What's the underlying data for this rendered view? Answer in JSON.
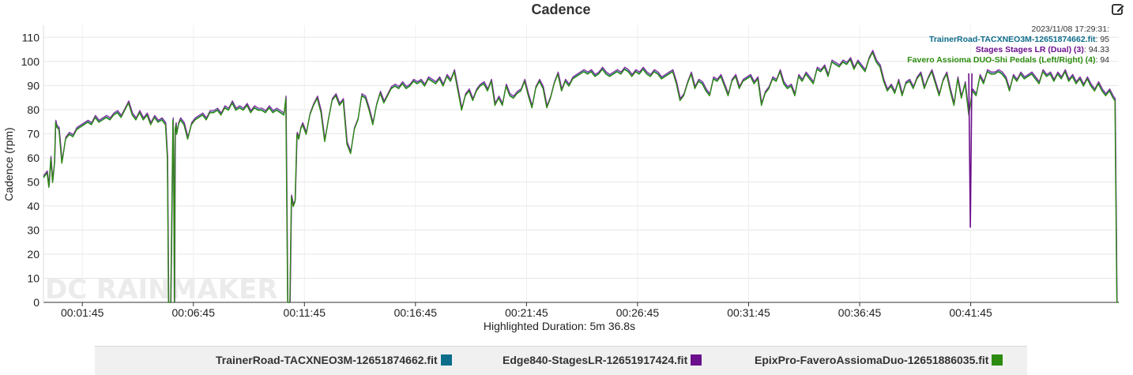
{
  "title": "Cadence",
  "watermark": "DC RAINMAKER",
  "readout": {
    "time": "2023/11/08 17:29:31:",
    "rows": [
      {
        "name": "TrainerRoad-TACXNEO3M-12651874662.fit",
        "value": ": 95",
        "color": "#0f6d8c"
      },
      {
        "name": "Stages Stages LR (Dual) (3)",
        "value": ": 94.33",
        "color": "#6c0f8c"
      },
      {
        "name": "Favero Assioma DUO-Shi Pedals (Left/Right) (4)",
        "value": ": 94",
        "color": "#2c8c0f"
      }
    ]
  },
  "legend": [
    {
      "label": "TrainerRoad-TACXNEO3M-12651874662.fit",
      "color": "#0f6d8c"
    },
    {
      "label": "Edge840-StagesLR-12651917424.fit",
      "color": "#6c0f8c"
    },
    {
      "label": "EpixPro-FaveroAssiomaDuo-12651886035.fit",
      "color": "#2c8c0f"
    }
  ],
  "highlighted_duration": "Highlighted Duration: 5m 36.8s",
  "chart_data": {
    "type": "line",
    "ylabel": "Cadence (rpm)",
    "xlabel": "",
    "ylim": [
      0,
      115
    ],
    "yticks": [
      0,
      10,
      20,
      30,
      40,
      50,
      60,
      70,
      80,
      90,
      100,
      110
    ],
    "xlim_seconds": [
      0,
      2905
    ],
    "xticks": [
      {
        "t": 105,
        "label": "00:01:45"
      },
      {
        "t": 405,
        "label": "00:06:45"
      },
      {
        "t": 705,
        "label": "00:11:45"
      },
      {
        "t": 1005,
        "label": "00:16:45"
      },
      {
        "t": 1305,
        "label": "00:21:45"
      },
      {
        "t": 1605,
        "label": "00:26:45"
      },
      {
        "t": 1905,
        "label": "00:31:45"
      },
      {
        "t": 2205,
        "label": "00:36:45"
      },
      {
        "t": 2505,
        "label": "00:41:45"
      }
    ],
    "grid": true,
    "colors": [
      "#0f6d8c",
      "#6c0f8c",
      "#2c8c0f"
    ],
    "series_trainerroad": {
      "t": [
        0,
        10,
        15,
        20,
        25,
        30,
        33,
        36,
        42,
        50,
        60,
        70,
        80,
        90,
        100,
        110,
        120,
        130,
        140,
        150,
        160,
        170,
        180,
        190,
        200,
        210,
        220,
        230,
        240,
        250,
        260,
        270,
        280,
        290,
        300,
        310,
        320,
        330,
        335,
        338,
        341,
        344,
        350,
        352,
        354,
        356,
        358,
        360,
        365,
        370,
        380,
        390,
        400,
        410,
        420,
        430,
        440,
        450,
        460,
        470,
        480,
        490,
        500,
        510,
        520,
        530,
        540,
        550,
        560,
        570,
        580,
        590,
        600,
        610,
        620,
        630,
        640,
        650,
        655,
        660,
        663,
        666,
        670,
        675,
        680,
        685,
        690,
        695,
        700,
        710,
        720,
        730,
        740,
        750,
        760,
        770,
        780,
        790,
        800,
        810,
        820,
        830,
        840,
        850,
        860,
        870,
        880,
        890,
        900,
        910,
        920,
        930,
        940,
        950,
        960,
        970,
        980,
        990,
        1000,
        1010,
        1020,
        1030,
        1040,
        1050,
        1060,
        1070,
        1080,
        1090,
        1100,
        1110,
        1120,
        1130,
        1140,
        1150,
        1160,
        1170,
        1180,
        1190,
        1200,
        1210,
        1220,
        1230,
        1240,
        1250,
        1260,
        1270,
        1280,
        1290,
        1300,
        1310,
        1320,
        1330,
        1340,
        1350,
        1360,
        1370,
        1380,
        1390,
        1400,
        1410,
        1420,
        1430,
        1440,
        1450,
        1460,
        1470,
        1480,
        1490,
        1500,
        1510,
        1520,
        1530,
        1540,
        1550,
        1560,
        1570,
        1580,
        1590,
        1600,
        1610,
        1620,
        1630,
        1640,
        1650,
        1660,
        1670,
        1680,
        1690,
        1700,
        1710,
        1720,
        1730,
        1740,
        1750,
        1760,
        1770,
        1780,
        1790,
        1800,
        1810,
        1820,
        1830,
        1840,
        1850,
        1860,
        1870,
        1880,
        1890,
        1900,
        1910,
        1920,
        1930,
        1940,
        1950,
        1960,
        1970,
        1980,
        1990,
        2000,
        2010,
        2020,
        2030,
        2040,
        2050,
        2060,
        2070,
        2080,
        2090,
        2100,
        2110,
        2120,
        2130,
        2140,
        2150,
        2160,
        2170,
        2180,
        2190,
        2200,
        2210,
        2220,
        2230,
        2240,
        2250,
        2260,
        2270,
        2280,
        2290,
        2300,
        2310,
        2320,
        2330,
        2340,
        2350,
        2360,
        2370,
        2380,
        2390,
        2400,
        2410,
        2420,
        2430,
        2440,
        2450,
        2460,
        2470,
        2480,
        2490,
        2500,
        2510,
        2520,
        2530,
        2540,
        2550,
        2560,
        2570,
        2580,
        2590,
        2600,
        2610,
        2620,
        2630,
        2640,
        2650,
        2660,
        2670,
        2680,
        2690,
        2700,
        2710,
        2720,
        2730,
        2740,
        2750,
        2760,
        2770,
        2780,
        2790,
        2800,
        2810,
        2820,
        2830,
        2840,
        2850,
        2860,
        2870,
        2880,
        2890,
        2895,
        2900,
        2905
      ],
      "v": [
        52,
        54,
        48,
        60,
        50,
        58,
        75,
        73,
        72,
        58,
        68,
        70,
        69,
        72,
        73,
        74,
        75,
        74,
        77,
        75,
        76,
        77,
        76,
        78,
        79,
        77,
        80,
        83,
        78,
        76,
        79,
        76,
        78,
        74,
        77,
        75,
        76,
        74,
        60,
        0,
        0,
        0,
        76,
        55,
        0,
        72,
        74,
        70,
        74,
        76,
        74,
        68,
        74,
        76,
        77,
        78,
        76,
        79,
        79,
        80,
        78,
        81,
        80,
        83,
        80,
        81,
        80,
        82,
        79,
        81,
        80,
        80,
        79,
        81,
        79,
        80,
        79,
        78,
        85,
        0,
        0,
        0,
        44,
        40,
        42,
        70,
        68,
        72,
        74,
        70,
        78,
        82,
        85,
        79,
        67,
        76,
        84,
        86,
        82,
        84,
        66,
        62,
        72,
        76,
        86,
        85,
        80,
        74,
        82,
        87,
        83,
        86,
        89,
        90,
        89,
        91,
        89,
        90,
        92,
        91,
        92,
        90,
        93,
        92,
        91,
        93,
        90,
        94,
        92,
        96,
        88,
        80,
        86,
        88,
        84,
        88,
        90,
        91,
        88,
        92,
        82,
        85,
        82,
        90,
        86,
        85,
        87,
        88,
        92,
        86,
        81,
        89,
        92,
        89,
        81,
        85,
        91,
        95,
        88,
        92,
        90,
        93,
        94,
        95,
        96,
        95,
        96,
        94,
        95,
        97,
        95,
        94,
        95,
        96,
        95,
        97,
        96,
        94,
        96,
        95,
        97,
        95,
        94,
        96,
        95,
        93,
        94,
        95,
        96,
        91,
        84,
        86,
        91,
        95,
        89,
        92,
        91,
        88,
        86,
        93,
        92,
        94,
        90,
        86,
        92,
        94,
        89,
        92,
        93,
        94,
        91,
        93,
        82,
        87,
        89,
        93,
        92,
        96,
        91,
        89,
        90,
        86,
        94,
        92,
        95,
        93,
        91,
        97,
        96,
        98,
        94,
        100,
        99,
        98,
        100,
        99,
        101,
        97,
        100,
        98,
        96,
        101,
        104,
        100,
        98,
        92,
        88,
        90,
        87,
        92,
        86,
        91,
        92,
        89,
        93,
        95,
        89,
        93,
        96,
        91,
        86,
        92,
        95,
        88,
        82,
        93,
        85,
        91,
        78,
        88,
        86,
        94,
        91,
        96,
        95,
        95,
        96,
        95,
        93,
        88,
        94,
        92,
        95,
        93,
        94,
        95,
        93,
        91,
        96,
        94,
        95,
        92,
        95,
        93,
        96,
        92,
        94,
        91,
        93,
        90,
        93,
        90,
        88,
        91,
        88,
        86,
        88,
        85,
        84,
        0,
        0
      ],
      "drops_purple": [
        [
          2504,
          31
        ]
      ]
    }
  }
}
